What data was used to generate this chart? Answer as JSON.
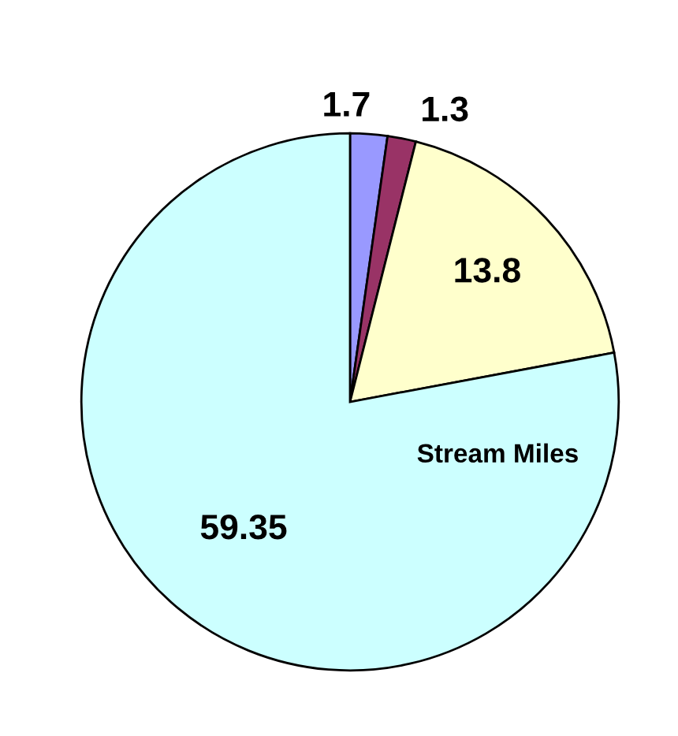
{
  "chart_data": {
    "type": "pie",
    "title": "Stream Miles",
    "categories": [
      null,
      null,
      null,
      null
    ],
    "values": [
      1.7,
      1.3,
      13.8,
      59.35
    ],
    "colors": [
      "#9999ff",
      "#993366",
      "#ffffcc",
      "#ccffff"
    ],
    "data_labels": true
  }
}
